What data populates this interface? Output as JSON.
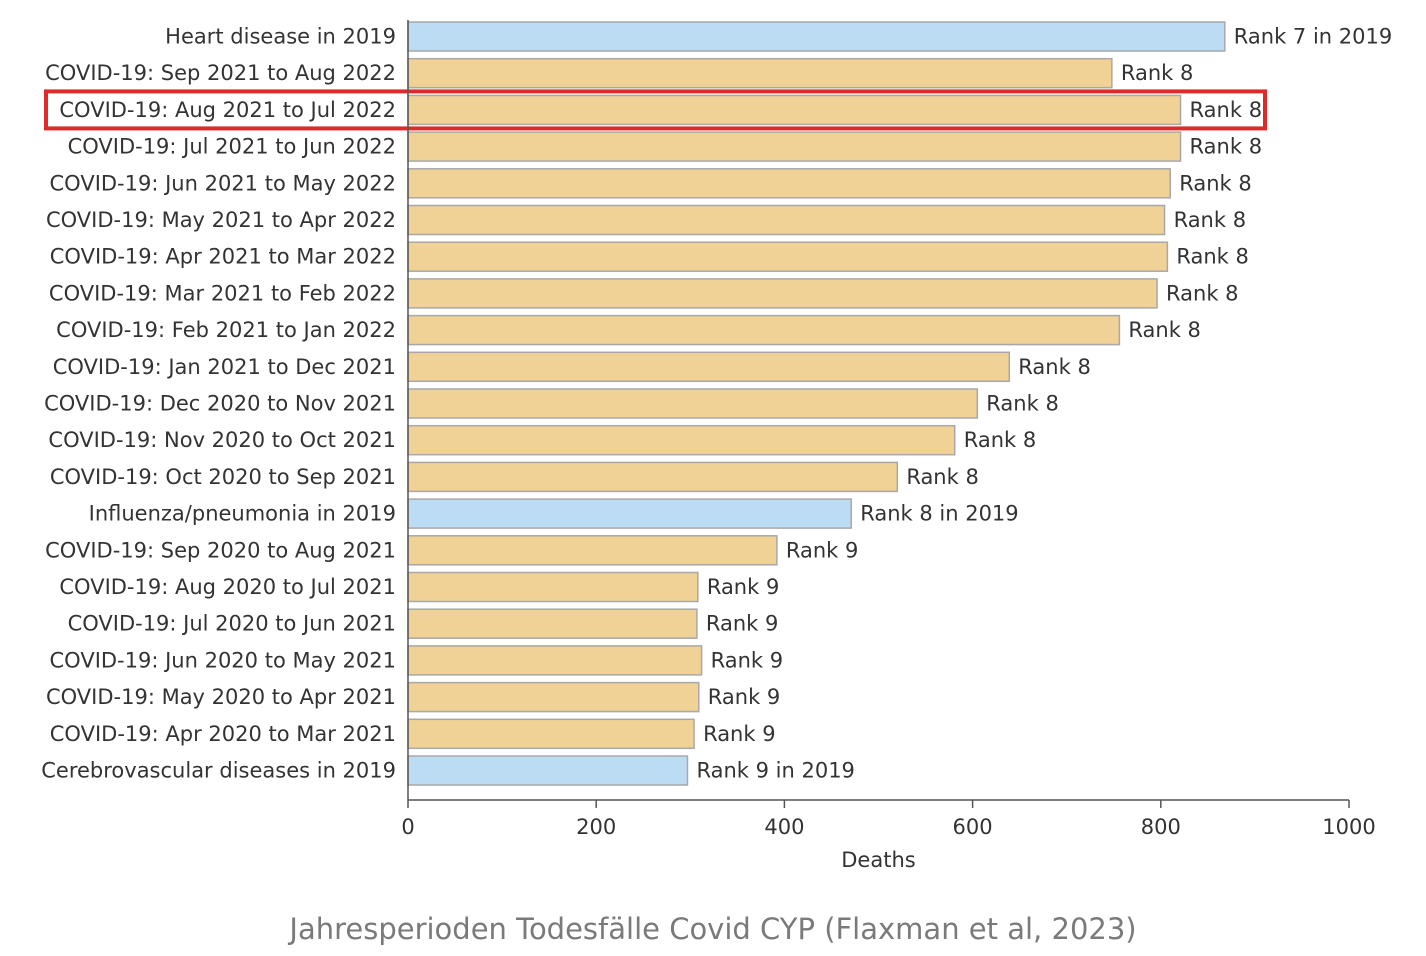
{
  "caption": "Jahresperioden Todesfälle Covid CYP (Flaxman et al, 2023)",
  "colors": {
    "covid_bar": "#f0d196",
    "reference_bar": "#bcdcf4",
    "bar_stroke": "#a8a8a8",
    "highlight": "#e02a2a"
  },
  "chart_data": {
    "type": "bar",
    "orientation": "horizontal",
    "xlabel": "Deaths",
    "xlim": [
      0,
      1000
    ],
    "xticks": [
      0,
      200,
      400,
      600,
      800,
      1000
    ],
    "highlighted_index": 2,
    "bars": [
      {
        "label": "Heart disease in 2019",
        "value": 868,
        "annotation": "Rank 7 in 2019",
        "group": "reference"
      },
      {
        "label": "COVID-19: Sep 2021 to Aug 2022",
        "value": 748,
        "annotation": "Rank 8",
        "group": "covid"
      },
      {
        "label": "COVID-19: Aug 2021 to Jul 2022",
        "value": 821,
        "annotation": "Rank 8",
        "group": "covid"
      },
      {
        "label": "COVID-19: Jul 2021 to Jun 2022",
        "value": 821,
        "annotation": "Rank 8",
        "group": "covid"
      },
      {
        "label": "COVID-19: Jun 2021 to May 2022",
        "value": 810,
        "annotation": "Rank 8",
        "group": "covid"
      },
      {
        "label": "COVID-19: May 2021 to Apr 2022",
        "value": 804,
        "annotation": "Rank 8",
        "group": "covid"
      },
      {
        "label": "COVID-19: Apr 2021 to Mar 2022",
        "value": 807,
        "annotation": "Rank 8",
        "group": "covid"
      },
      {
        "label": "COVID-19: Mar 2021 to Feb 2022",
        "value": 796,
        "annotation": "Rank 8",
        "group": "covid"
      },
      {
        "label": "COVID-19: Feb 2021 to Jan 2022",
        "value": 756,
        "annotation": "Rank 8",
        "group": "covid"
      },
      {
        "label": "COVID-19: Jan 2021 to Dec 2021",
        "value": 639,
        "annotation": "Rank 8",
        "group": "covid"
      },
      {
        "label": "COVID-19: Dec 2020 to Nov 2021",
        "value": 605,
        "annotation": "Rank 8",
        "group": "covid"
      },
      {
        "label": "COVID-19: Nov 2020 to Oct 2021",
        "value": 581,
        "annotation": "Rank 8",
        "group": "covid"
      },
      {
        "label": "COVID-19: Oct 2020 to Sep 2021",
        "value": 520,
        "annotation": "Rank 8",
        "group": "covid"
      },
      {
        "label": "Influenza/pneumonia in 2019",
        "value": 471,
        "annotation": "Rank 8 in 2019",
        "group": "reference"
      },
      {
        "label": "COVID-19: Sep 2020 to Aug 2021",
        "value": 392,
        "annotation": "Rank 9",
        "group": "covid"
      },
      {
        "label": "COVID-19: Aug 2020 to Jul 2021",
        "value": 308,
        "annotation": "Rank 9",
        "group": "covid"
      },
      {
        "label": "COVID-19: Jul 2020 to Jun 2021",
        "value": 307,
        "annotation": "Rank 9",
        "group": "covid"
      },
      {
        "label": "COVID-19: Jun 2020 to May 2021",
        "value": 312,
        "annotation": "Rank 9",
        "group": "covid"
      },
      {
        "label": "COVID-19: May 2020 to Apr 2021",
        "value": 309,
        "annotation": "Rank 9",
        "group": "covid"
      },
      {
        "label": "COVID-19: Apr 2020 to Mar 2021",
        "value": 304,
        "annotation": "Rank 9",
        "group": "covid"
      },
      {
        "label": "Cerebrovascular diseases in 2019",
        "value": 297,
        "annotation": "Rank 9 in 2019",
        "group": "reference"
      }
    ]
  }
}
